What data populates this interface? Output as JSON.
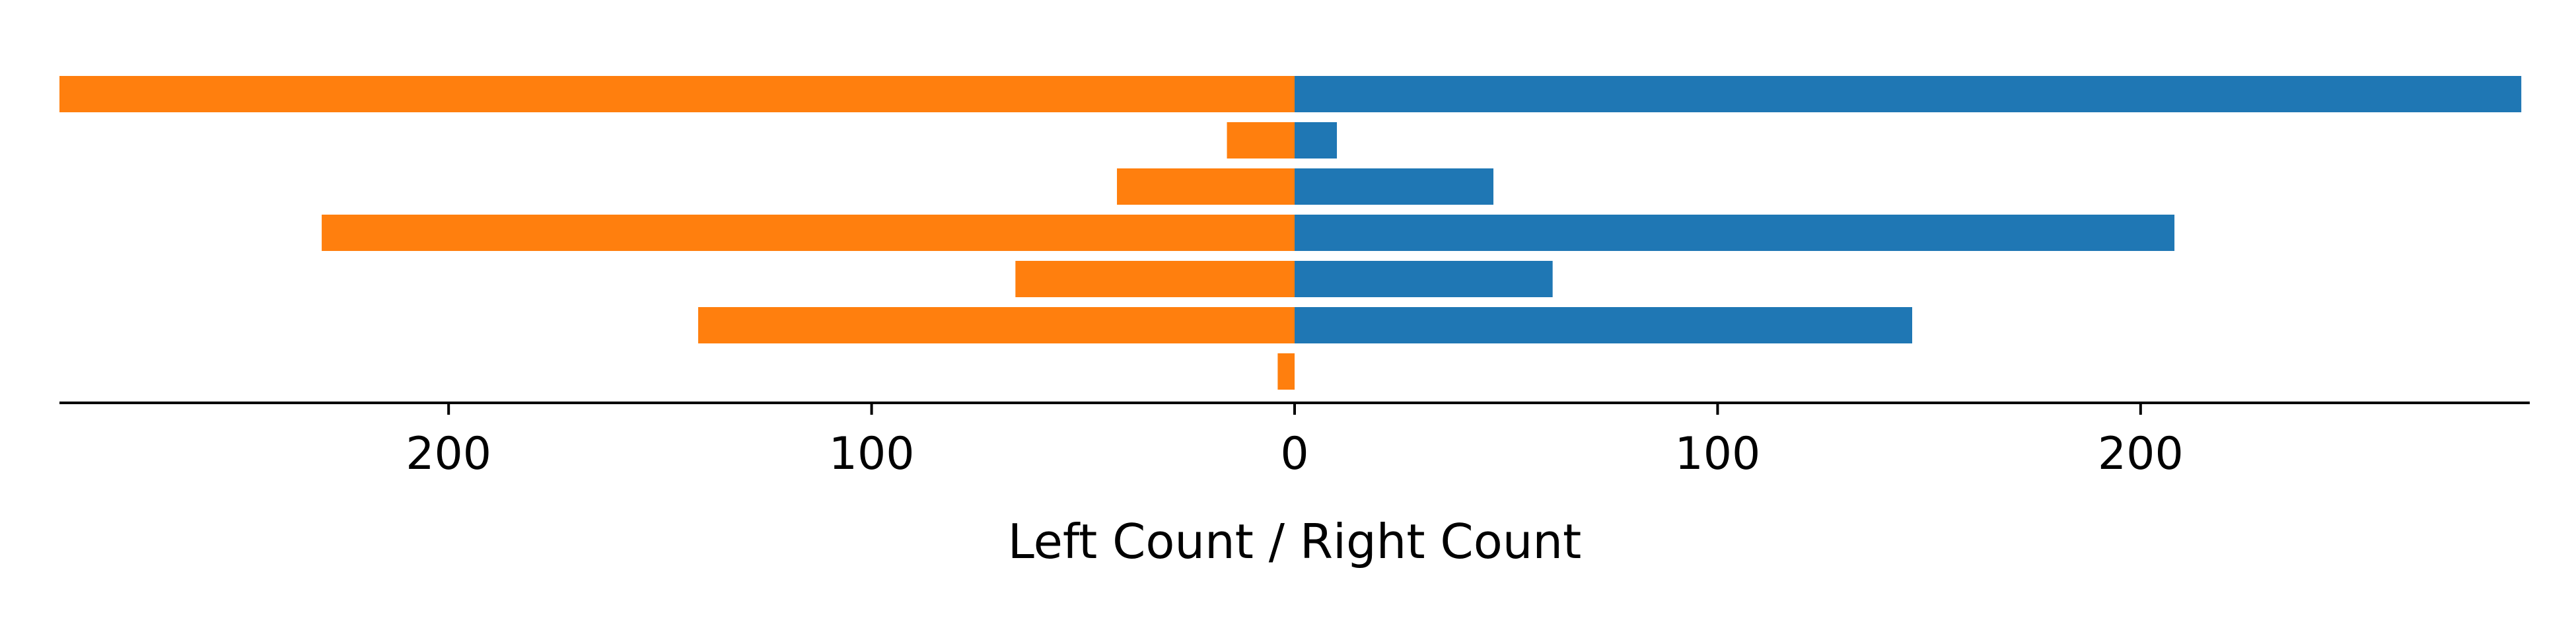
{
  "chart_data": {
    "type": "bar",
    "orientation": "horizontal-diverging",
    "xlabel": "Left Count / Right Count",
    "xticks": [
      {
        "value": -200,
        "label": "200"
      },
      {
        "value": -100,
        "label": "100"
      },
      {
        "value": 0,
        "label": "0"
      },
      {
        "value": 100,
        "label": "100"
      },
      {
        "value": 200,
        "label": "200"
      }
    ],
    "xlim": [
      -292,
      292
    ],
    "grid": false,
    "legend": "none",
    "series": [
      {
        "side": "left",
        "color": "#ff7f0e",
        "values": [
          292,
          16,
          42,
          230,
          66,
          141,
          4
        ]
      },
      {
        "side": "right",
        "color": "#1f77b4",
        "values": [
          290,
          10,
          47,
          208,
          61,
          146,
          0
        ]
      }
    ]
  }
}
